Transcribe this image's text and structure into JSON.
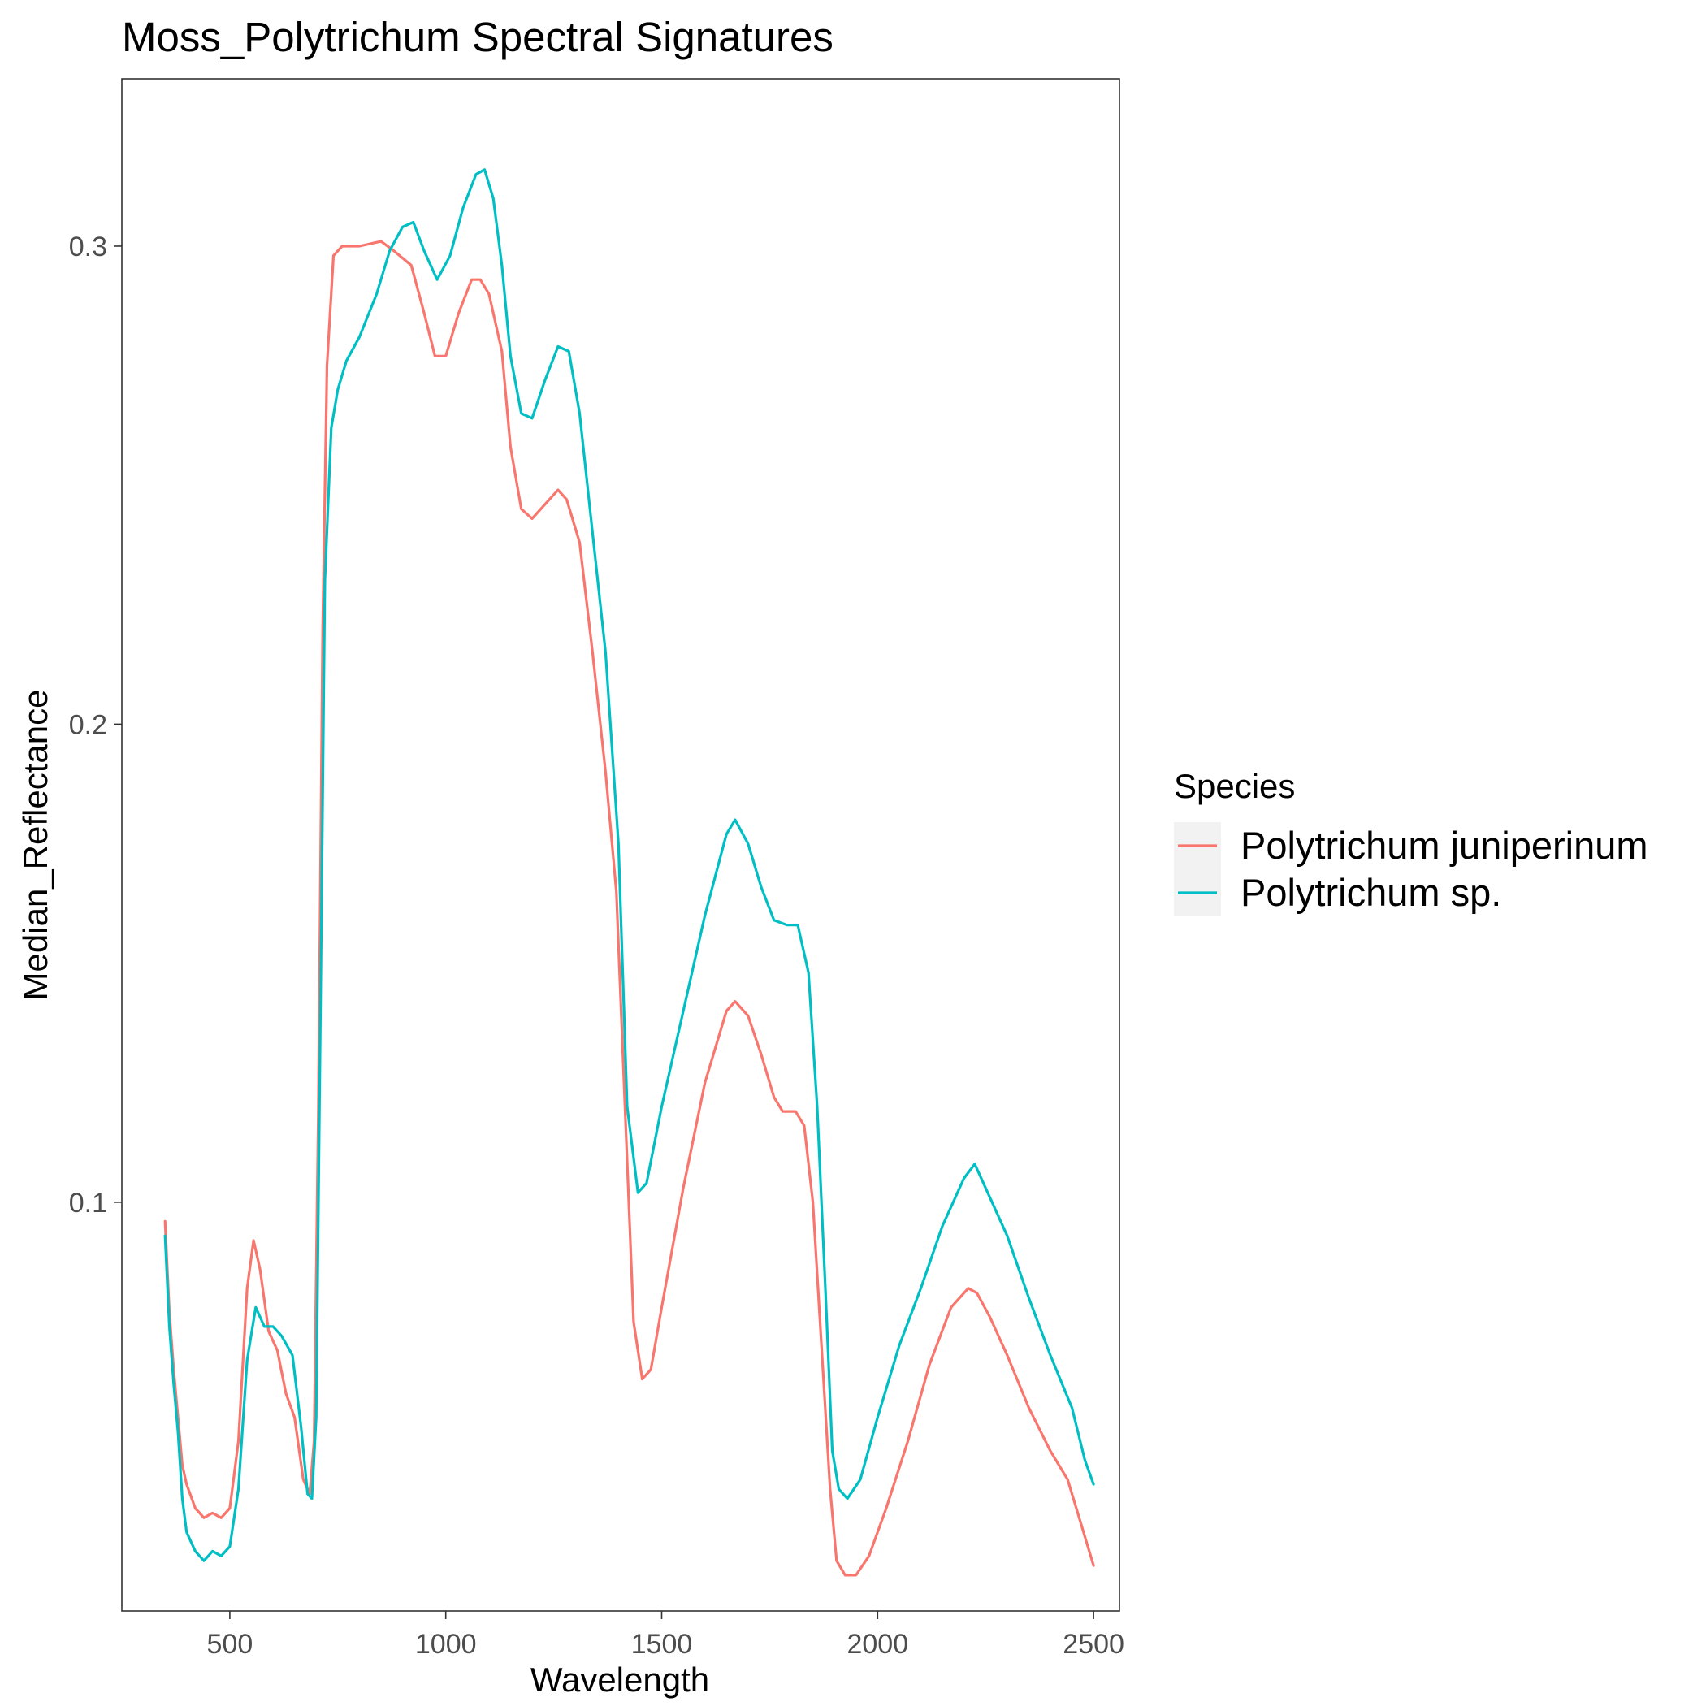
{
  "chart_data": {
    "type": "line",
    "title": "Moss_Polytrichum Spectral Signatures",
    "xlabel": "Wavelength",
    "ylabel": "Median_Reflectance",
    "xlim": [
      250,
      2560
    ],
    "ylim": [
      0.0145,
      0.335
    ],
    "x_ticks": [
      500,
      1000,
      1500,
      2000,
      2500
    ],
    "y_ticks": [
      0.1,
      0.2,
      0.3
    ],
    "x_tick_labels": [
      "500",
      "1000",
      "1500",
      "2000",
      "2500"
    ],
    "y_tick_labels": [
      "0.1",
      "0.2",
      "0.3"
    ],
    "grid": false,
    "legend": {
      "title": "Species",
      "placement": "right"
    },
    "series": [
      {
        "name": "Polytrichum juniperinum",
        "color": "#F8766D",
        "points": [
          [
            350,
            0.096
          ],
          [
            360,
            0.077
          ],
          [
            370,
            0.065
          ],
          [
            380,
            0.055
          ],
          [
            390,
            0.045
          ],
          [
            400,
            0.041
          ],
          [
            420,
            0.036
          ],
          [
            440,
            0.034
          ],
          [
            460,
            0.035
          ],
          [
            480,
            0.034
          ],
          [
            500,
            0.036
          ],
          [
            520,
            0.05
          ],
          [
            540,
            0.082
          ],
          [
            555,
            0.092
          ],
          [
            570,
            0.086
          ],
          [
            590,
            0.073
          ],
          [
            610,
            0.069
          ],
          [
            630,
            0.06
          ],
          [
            650,
            0.055
          ],
          [
            670,
            0.042
          ],
          [
            685,
            0.039
          ],
          [
            695,
            0.05
          ],
          [
            705,
            0.12
          ],
          [
            715,
            0.22
          ],
          [
            725,
            0.275
          ],
          [
            740,
            0.298
          ],
          [
            760,
            0.3
          ],
          [
            800,
            0.3
          ],
          [
            850,
            0.301
          ],
          [
            880,
            0.299
          ],
          [
            920,
            0.296
          ],
          [
            950,
            0.286
          ],
          [
            975,
            0.277
          ],
          [
            1000,
            0.277
          ],
          [
            1030,
            0.286
          ],
          [
            1060,
            0.293
          ],
          [
            1080,
            0.293
          ],
          [
            1100,
            0.29
          ],
          [
            1130,
            0.278
          ],
          [
            1150,
            0.258
          ],
          [
            1175,
            0.245
          ],
          [
            1200,
            0.243
          ],
          [
            1230,
            0.246
          ],
          [
            1260,
            0.249
          ],
          [
            1280,
            0.247
          ],
          [
            1310,
            0.238
          ],
          [
            1340,
            0.215
          ],
          [
            1370,
            0.19
          ],
          [
            1395,
            0.165
          ],
          [
            1415,
            0.12
          ],
          [
            1435,
            0.075
          ],
          [
            1455,
            0.063
          ],
          [
            1475,
            0.065
          ],
          [
            1500,
            0.078
          ],
          [
            1550,
            0.103
          ],
          [
            1600,
            0.125
          ],
          [
            1650,
            0.14
          ],
          [
            1670,
            0.142
          ],
          [
            1700,
            0.139
          ],
          [
            1730,
            0.131
          ],
          [
            1760,
            0.122
          ],
          [
            1780,
            0.119
          ],
          [
            1810,
            0.119
          ],
          [
            1830,
            0.116
          ],
          [
            1850,
            0.1
          ],
          [
            1870,
            0.07
          ],
          [
            1890,
            0.04
          ],
          [
            1905,
            0.025
          ],
          [
            1925,
            0.022
          ],
          [
            1950,
            0.022
          ],
          [
            1980,
            0.026
          ],
          [
            2020,
            0.036
          ],
          [
            2070,
            0.05
          ],
          [
            2120,
            0.066
          ],
          [
            2170,
            0.078
          ],
          [
            2210,
            0.082
          ],
          [
            2230,
            0.081
          ],
          [
            2260,
            0.076
          ],
          [
            2300,
            0.068
          ],
          [
            2350,
            0.057
          ],
          [
            2400,
            0.048
          ],
          [
            2440,
            0.042
          ],
          [
            2470,
            0.033
          ],
          [
            2500,
            0.024
          ]
        ]
      },
      {
        "name": "Polytrichum sp.",
        "color": "#00BFC4",
        "points": [
          [
            350,
            0.093
          ],
          [
            360,
            0.074
          ],
          [
            370,
            0.062
          ],
          [
            380,
            0.052
          ],
          [
            390,
            0.038
          ],
          [
            400,
            0.031
          ],
          [
            420,
            0.027
          ],
          [
            440,
            0.025
          ],
          [
            460,
            0.027
          ],
          [
            480,
            0.026
          ],
          [
            500,
            0.028
          ],
          [
            520,
            0.04
          ],
          [
            540,
            0.067
          ],
          [
            560,
            0.078
          ],
          [
            580,
            0.074
          ],
          [
            600,
            0.074
          ],
          [
            620,
            0.072
          ],
          [
            645,
            0.068
          ],
          [
            665,
            0.053
          ],
          [
            680,
            0.039
          ],
          [
            690,
            0.038
          ],
          [
            700,
            0.055
          ],
          [
            710,
            0.14
          ],
          [
            720,
            0.23
          ],
          [
            735,
            0.262
          ],
          [
            750,
            0.27
          ],
          [
            770,
            0.276
          ],
          [
            800,
            0.281
          ],
          [
            840,
            0.29
          ],
          [
            870,
            0.299
          ],
          [
            900,
            0.304
          ],
          [
            925,
            0.305
          ],
          [
            950,
            0.299
          ],
          [
            980,
            0.293
          ],
          [
            1010,
            0.298
          ],
          [
            1040,
            0.308
          ],
          [
            1070,
            0.315
          ],
          [
            1090,
            0.316
          ],
          [
            1110,
            0.31
          ],
          [
            1130,
            0.296
          ],
          [
            1150,
            0.277
          ],
          [
            1175,
            0.265
          ],
          [
            1200,
            0.264
          ],
          [
            1230,
            0.272
          ],
          [
            1260,
            0.279
          ],
          [
            1285,
            0.278
          ],
          [
            1310,
            0.265
          ],
          [
            1340,
            0.24
          ],
          [
            1370,
            0.215
          ],
          [
            1400,
            0.175
          ],
          [
            1420,
            0.12
          ],
          [
            1445,
            0.102
          ],
          [
            1465,
            0.104
          ],
          [
            1500,
            0.12
          ],
          [
            1550,
            0.14
          ],
          [
            1600,
            0.16
          ],
          [
            1650,
            0.177
          ],
          [
            1670,
            0.18
          ],
          [
            1700,
            0.175
          ],
          [
            1730,
            0.166
          ],
          [
            1760,
            0.159
          ],
          [
            1790,
            0.158
          ],
          [
            1815,
            0.158
          ],
          [
            1840,
            0.148
          ],
          [
            1860,
            0.12
          ],
          [
            1880,
            0.08
          ],
          [
            1895,
            0.048
          ],
          [
            1910,
            0.04
          ],
          [
            1930,
            0.038
          ],
          [
            1960,
            0.042
          ],
          [
            2000,
            0.055
          ],
          [
            2050,
            0.07
          ],
          [
            2100,
            0.082
          ],
          [
            2150,
            0.095
          ],
          [
            2200,
            0.105
          ],
          [
            2225,
            0.108
          ],
          [
            2250,
            0.103
          ],
          [
            2300,
            0.093
          ],
          [
            2350,
            0.08
          ],
          [
            2400,
            0.068
          ],
          [
            2450,
            0.057
          ],
          [
            2480,
            0.046
          ],
          [
            2500,
            0.041
          ]
        ]
      }
    ]
  }
}
